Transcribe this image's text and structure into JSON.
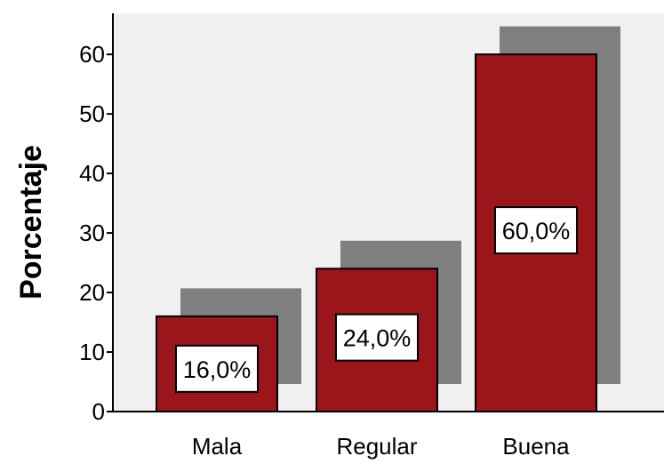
{
  "chart_data": {
    "type": "bar",
    "categories": [
      "Mala",
      "Regular",
      "Buena"
    ],
    "values": [
      16.0,
      24.0,
      60.0
    ],
    "data_labels": [
      "16,0%",
      "24,0%",
      "60,0%"
    ],
    "title": "",
    "xlabel": "",
    "ylabel": "Porcentaje",
    "ylim": [
      0,
      65
    ],
    "yticks": [
      0,
      10,
      20,
      30,
      40,
      50,
      60
    ],
    "grid": false,
    "legend": "none",
    "bar_style": "3d-shadow",
    "colors": {
      "bar": "#9b161b",
      "bar_shadow": "#7f7f7f",
      "plot_background": "#f0f0f0",
      "label_box": "#ffffff"
    }
  }
}
